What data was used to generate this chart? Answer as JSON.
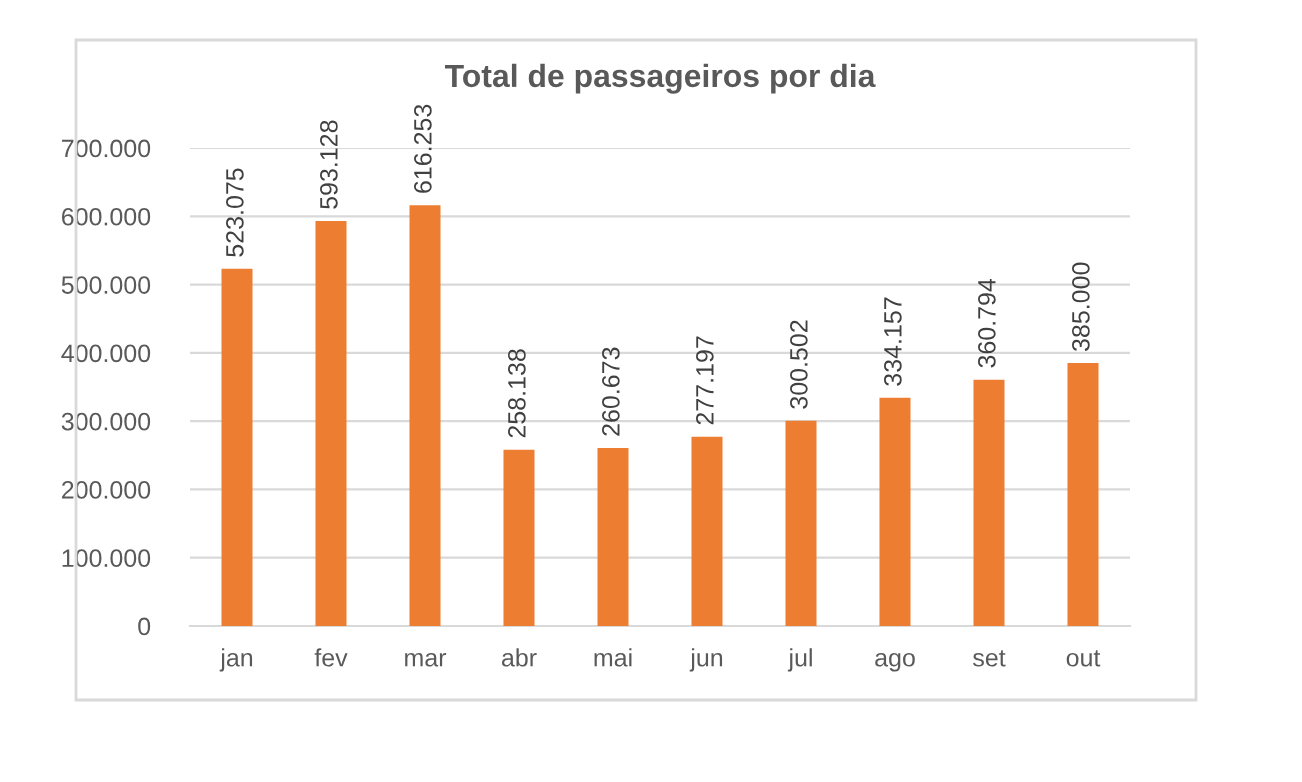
{
  "chart_data": {
    "type": "bar",
    "title": "Total de passageiros por dia",
    "categories": [
      "jan",
      "fev",
      "mar",
      "abr",
      "mai",
      "jun",
      "jul",
      "ago",
      "set",
      "out"
    ],
    "values": [
      523075,
      593128,
      616253,
      258138,
      260673,
      277197,
      300502,
      334157,
      360794,
      385000
    ],
    "value_labels": [
      "523.075",
      "593.128",
      "616.253",
      "258.138",
      "260.673",
      "277.197",
      "300.502",
      "334.157",
      "360.794",
      "385.000"
    ],
    "color": "#ed7d31",
    "ylim": [
      0,
      700000
    ],
    "yticks": [
      {
        "value": 0,
        "label": "0"
      },
      {
        "value": 100000,
        "label": "100.000"
      },
      {
        "value": 200000,
        "label": "200.000"
      },
      {
        "value": 300000,
        "label": "300.000"
      },
      {
        "value": 400000,
        "label": "400.000"
      },
      {
        "value": 500000,
        "label": "500.000"
      },
      {
        "value": 600000,
        "label": "600.000"
      },
      {
        "value": 700000,
        "label": "700.000"
      }
    ],
    "grid": "y",
    "legend": false
  }
}
